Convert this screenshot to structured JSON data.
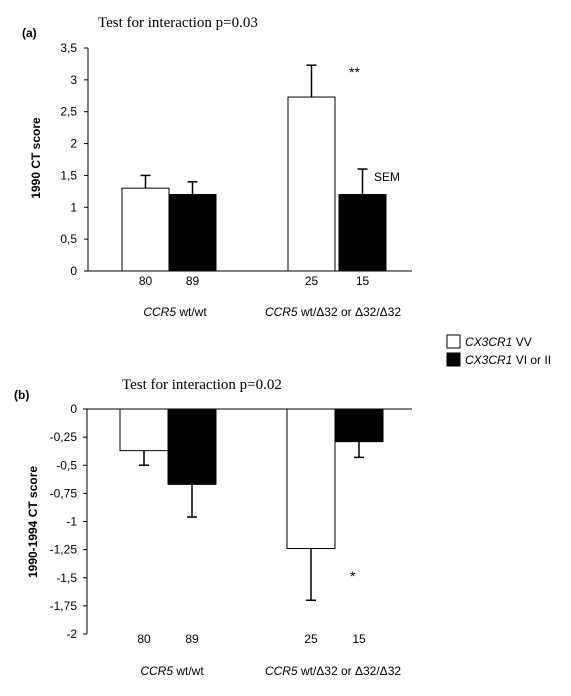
{
  "legend": {
    "items": [
      {
        "text_italic": "CX3CR1",
        "text_rest": " VV",
        "color": "#ffffff"
      },
      {
        "text_italic": "CX3CR1",
        "text_rest": " VI or II",
        "color": "#000000"
      }
    ]
  },
  "chart_data": [
    {
      "type": "bar",
      "panel_label": "(a)",
      "title": "Test for interaction p=0.03",
      "ylabel": "1990 CT score",
      "ylim": [
        0,
        3.5
      ],
      "yticks": [
        "0",
        "0,5",
        "1",
        "1,5",
        "2",
        "2,5",
        "3",
        "3,5"
      ],
      "ytick_values": [
        0,
        0.5,
        1,
        1.5,
        2,
        2.5,
        3,
        3.5
      ],
      "groups": [
        {
          "italic": "CCR5",
          "rest": " wt/wt"
        },
        {
          "italic": "CCR5",
          "rest": " wt/Δ32  or Δ32/Δ32"
        }
      ],
      "series": [
        {
          "color": "#ffffff",
          "values": [
            1.3,
            2.73
          ],
          "errors": [
            0.2,
            0.5
          ],
          "n": [
            "80",
            "25"
          ]
        },
        {
          "color": "#000000",
          "values": [
            1.2,
            1.2
          ],
          "errors": [
            0.2,
            0.4
          ],
          "n": [
            "89",
            "15"
          ]
        }
      ],
      "annotations": [
        {
          "text": "**",
          "group": 1
        },
        {
          "text": "SEM",
          "group": 1
        }
      ]
    },
    {
      "type": "bar",
      "panel_label": "(b)",
      "title": "Test for interaction p=0.02",
      "ylabel": "1990-1994 CT score",
      "ylim": [
        -2,
        0
      ],
      "yticks": [
        "0",
        "-0,25",
        "-0,5",
        "-0,75",
        "-1",
        "-1,25",
        "-1,5",
        "-1,75",
        "-2"
      ],
      "ytick_values": [
        0,
        -0.25,
        -0.5,
        -0.75,
        -1,
        -1.25,
        -1.5,
        -1.75,
        -2
      ],
      "groups": [
        {
          "italic": "CCR5",
          "rest": " wt/wt"
        },
        {
          "italic": "CCR5",
          "rest": " wt/Δ32  or Δ32/Δ32"
        }
      ],
      "series": [
        {
          "color": "#ffffff",
          "values": [
            -0.37,
            -1.24
          ],
          "errors": [
            0.13,
            0.46
          ],
          "n": [
            "80",
            "25"
          ]
        },
        {
          "color": "#000000",
          "values": [
            -0.67,
            -0.29
          ],
          "errors": [
            0.29,
            0.14
          ],
          "n": [
            "89",
            "15"
          ]
        }
      ],
      "annotations": [
        {
          "text": "*",
          "group": 1
        }
      ]
    }
  ]
}
